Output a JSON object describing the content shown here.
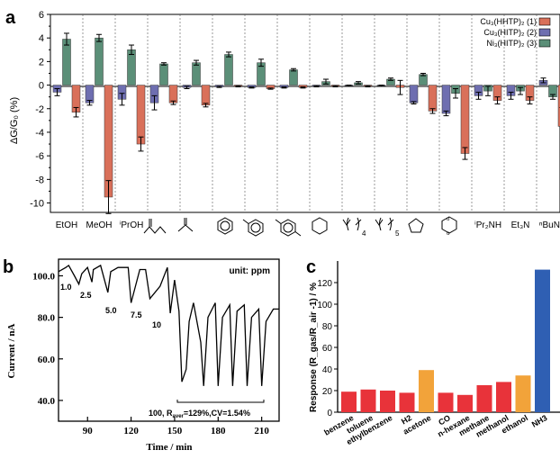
{
  "panel_a": {
    "letter": "a",
    "ylabel": "ΔG/G₀ (%)",
    "legend": [
      "Cu₃(HHTP)₂ (1)",
      "Cu₃(HITP)₂ (2)",
      "Ni₃(HITP)₂ (3)"
    ],
    "colors": [
      "#d9705a",
      "#6e6eb0",
      "#5b8f78"
    ],
    "category_labels": [
      "EtOH",
      "MeOH",
      "ⁱPrOH",
      "",
      "",
      "",
      "",
      "",
      "",
      "",
      "",
      "",
      "",
      "ⁱPr₂NH",
      "Et₃N",
      "ⁿBuNH"
    ],
    "structure_icons": [
      "",
      "",
      "",
      "butanone-structure-icon",
      "acetone-structure-icon",
      "benzene-structure-icon",
      "toluene-structure-icon",
      "p-xylene-structure-icon",
      "cyclohexane-structure-icon",
      "hexane-structure-icon",
      "heptane-structure-icon",
      "thf-structure-icon",
      "dioxane-structure-icon",
      "",
      "",
      ""
    ],
    "chain_subscripts": [
      "4",
      "5"
    ]
  },
  "panel_b": {
    "letter": "b",
    "unit_label": "unit: ppm",
    "concentration_labels": [
      "1.0",
      "2.5",
      "5.0",
      "7.5",
      "10"
    ],
    "annotation": "100, R",
    "annotation_sub": "aver",
    "annotation_tail": "=129%,CV=1.54%"
  },
  "panel_c": {
    "letter": "c"
  },
  "chart_data": [
    {
      "type": "bar",
      "panel": "a",
      "categories": [
        "EtOH",
        "MeOH",
        "iPrOH",
        "2-butanone",
        "acetone",
        "benzene",
        "toluene",
        "p-xylene",
        "cyclohexane",
        "n-hexane",
        "n-heptane",
        "THF",
        "1,4-dioxane",
        "iPr2NH",
        "Et3N",
        "nBuNH2"
      ],
      "ylabel": "ΔG/G₀ (%)",
      "ylim": [
        -10.8,
        6
      ],
      "yticks": [
        -10,
        -8,
        -6,
        -4,
        -2,
        0,
        2,
        4,
        6
      ],
      "legend_position": "top-right",
      "series": [
        {
          "name": "Cu₃(HITP)₂ (2)",
          "color": "#6e6eb0",
          "values": [
            -0.6,
            -1.5,
            -1.2,
            -1.5,
            -0.2,
            -0.15,
            -0.2,
            -0.2,
            -0.1,
            -0.05,
            -0.05,
            -1.5,
            -2.4,
            -0.9,
            -0.9,
            0.4
          ],
          "errors": [
            0.3,
            0.2,
            0.5,
            0.6,
            0.1,
            0.05,
            0.05,
            0.05,
            0.05,
            0.05,
            0.05,
            0.1,
            0.2,
            0.3,
            0.3,
            0.2
          ]
        },
        {
          "name": "Ni₃(HITP)₂ (3)",
          "color": "#5b8f78",
          "values": [
            3.9,
            4.0,
            3.0,
            1.8,
            1.9,
            2.6,
            1.9,
            1.3,
            0.3,
            0.2,
            0.5,
            0.9,
            -0.7,
            -0.5,
            -0.5,
            -1.0
          ],
          "errors": [
            0.5,
            0.3,
            0.4,
            0.1,
            0.2,
            0.2,
            0.3,
            0.1,
            0.2,
            0.1,
            0.1,
            0.1,
            0.4,
            0.4,
            0.3,
            0.2
          ]
        },
        {
          "name": "Cu₃(HHTP)₂ (1)",
          "color": "#d9705a",
          "values": [
            -2.3,
            -9.5,
            -5.0,
            -1.5,
            -1.7,
            -0.1,
            -0.3,
            -0.2,
            -0.1,
            -0.1,
            -0.2,
            -2.2,
            -5.8,
            -1.3,
            -1.3,
            -3.5
          ],
          "errors": [
            0.4,
            1.4,
            0.6,
            0.15,
            0.15,
            0.05,
            0.05,
            0.05,
            0.05,
            0.05,
            0.6,
            0.2,
            0.5,
            0.3,
            0.3,
            1.6
          ]
        }
      ]
    },
    {
      "type": "line",
      "panel": "b",
      "xlabel": "Time / min",
      "ylabel": "Current / nA",
      "xlim": [
        70,
        222
      ],
      "ylim": [
        30,
        108
      ],
      "xticks": [
        90,
        120,
        150,
        180,
        210
      ],
      "yticks": [
        40.0,
        60.0,
        80.0,
        100.0
      ],
      "x": [
        70,
        75,
        77,
        81,
        84,
        86,
        90,
        93,
        94,
        99,
        104,
        106,
        111,
        118,
        120,
        126,
        130,
        133,
        140,
        145,
        147,
        150,
        153,
        155,
        158,
        160,
        163,
        168,
        170,
        173,
        178,
        180,
        183,
        188,
        190,
        193,
        198,
        200,
        203,
        208,
        210,
        213,
        218,
        222
      ],
      "y": [
        102,
        104,
        105,
        100,
        96,
        101,
        104,
        97,
        103,
        105,
        92,
        102,
        104,
        104,
        87,
        103,
        103,
        89,
        95,
        104,
        82,
        98,
        83,
        49,
        55,
        78,
        87,
        68,
        47,
        80,
        87,
        47,
        80,
        86,
        47,
        83,
        86,
        47,
        80,
        84,
        47,
        78,
        84,
        84
      ]
    },
    {
      "type": "bar",
      "panel": "c",
      "categories": [
        "benzene",
        "toluene",
        "ethylbenzene",
        "H2",
        "acetone",
        "CO",
        "n-hexane",
        "methane",
        "methanol",
        "ethanol",
        "NH3"
      ],
      "values": [
        19,
        21,
        20,
        18,
        39,
        18,
        16,
        25,
        28,
        34,
        132
      ],
      "colors": [
        "#e8333a",
        "#e8333a",
        "#e8333a",
        "#e8333a",
        "#f2a33a",
        "#e8333a",
        "#e8333a",
        "#e8333a",
        "#e8333a",
        "#f2a33a",
        "#2f5fb3"
      ],
      "ylabel": "Response (R_gas/R_air -1) / %",
      "ylim": [
        0,
        140
      ],
      "yticks": [
        0,
        20,
        40,
        60,
        80,
        100,
        120
      ]
    }
  ]
}
